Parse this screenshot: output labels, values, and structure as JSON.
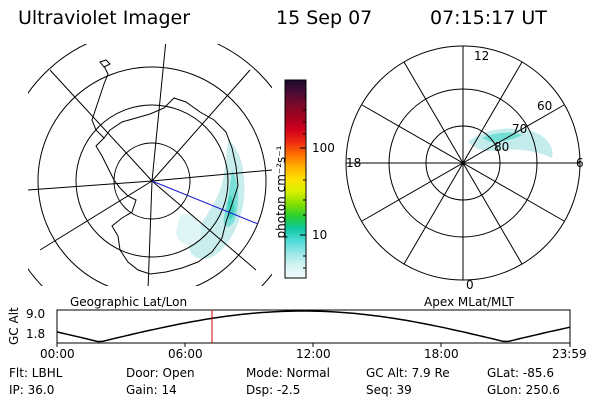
{
  "header": {
    "instrument": "Ultraviolet Imager",
    "date": "15 Sep 07",
    "time": "07:15:17 UT"
  },
  "left_panel": {
    "label": "Geographic Lat/Lon"
  },
  "right_panel": {
    "label": "Apex MLat/MLT",
    "mlt_labels": [
      "12",
      "18",
      "6",
      "0"
    ],
    "mlat_labels": [
      "60",
      "70",
      "80"
    ]
  },
  "colorbar": {
    "unit_label": "photon cm⁻²s⁻¹",
    "ticks": [
      "100",
      "10"
    ],
    "colors": [
      "#1a0a2a",
      "#4a0c34",
      "#7a0a2a",
      "#a50020",
      "#d0001c",
      "#ee2a12",
      "#ff6e00",
      "#ffb000",
      "#ffe000",
      "#d8f000",
      "#88e000",
      "#28d030",
      "#10c8a0",
      "#50dcd8",
      "#98e8e6",
      "#d6f4f4",
      "#f2fafa"
    ]
  },
  "altitude_plot": {
    "ylabel": "GC Alt",
    "yticks": [
      "9.0",
      "1.8"
    ],
    "xticks": [
      "00:00",
      "06:00",
      "12:00",
      "18:00",
      "23:59"
    ],
    "current_time_hours": 7.25,
    "marker_color": "#cc0000"
  },
  "footer": {
    "filter": "Flt: LBHL",
    "ip": "IP: 36.0",
    "door": "Door: Open",
    "gain": "Gain: 14",
    "mode": "Mode: Normal",
    "dsp": "Dsp:    -2.5",
    "gc_alt": "GC Alt: 7.9 Re",
    "seq": "Seq: 39",
    "glat": "GLat: -85.6",
    "glon": "GLon: 250.6"
  }
}
